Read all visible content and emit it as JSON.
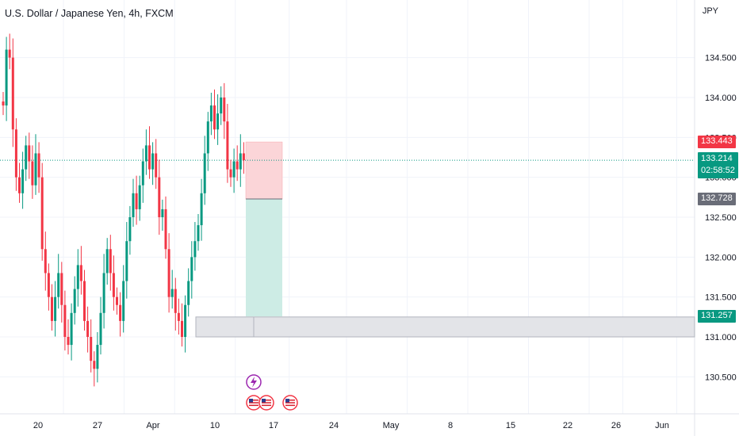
{
  "header": {
    "title": "U.S. Dollar / Japanese Yen, 4h, FXCM",
    "currency": "JPY"
  },
  "price_tags": {
    "stop": "133.443",
    "current_price": "133.214",
    "countdown": "02:58:52",
    "entry": "132.728",
    "target": "131.257"
  },
  "colors": {
    "up": "#089981",
    "down": "#f23645",
    "stop_zone": "#fbd5d8",
    "target_zone": "#cdece5",
    "box": "#e3e4e8",
    "box_border": "#b2b5be",
    "grid": "#f0f3fa",
    "text": "#131722",
    "event_purple": "#9c27b0",
    "event_red": "#f23645"
  },
  "chart_data": {
    "type": "candlestick",
    "title": "U.S. Dollar / Japanese Yen, 4h, FXCM",
    "y_ticks": [
      130.5,
      131.0,
      131.5,
      132.0,
      132.5,
      133.0,
      133.5,
      134.0,
      134.5
    ],
    "y_tick_labels": [
      "130.500",
      "131.000",
      "131.500",
      "132.000",
      "132.500",
      "133.000",
      "133.500",
      "134.000",
      "134.500"
    ],
    "x_ticks": [
      {
        "label": "20",
        "bar": 8
      },
      {
        "label": "27",
        "bar": 26
      },
      {
        "label": "Apr",
        "bar": 41
      },
      {
        "label": "10",
        "bar": 59
      },
      {
        "label": "17",
        "bar": 75
      },
      {
        "label": "24",
        "bar": 92
      },
      {
        "label": "May",
        "bar": 110
      },
      {
        "label": "8",
        "bar": 128
      },
      {
        "label": "15",
        "bar": 146
      },
      {
        "label": "22",
        "bar": 164
      },
      {
        "label": "26",
        "bar": 174
      },
      {
        "label": "Jun",
        "bar": 190
      }
    ],
    "bar_count_span": 210,
    "ohlc_closes": [
      133.9,
      134.6,
      134.5,
      133.6,
      133.0,
      132.8,
      133.1,
      133.4,
      133.2,
      132.9,
      133.3,
      133.0,
      132.1,
      131.8,
      131.5,
      131.2,
      131.5,
      131.8,
      131.4,
      131.0,
      130.9,
      131.3,
      131.6,
      131.9,
      131.7,
      131.2,
      131.0,
      130.7,
      130.6,
      130.9,
      131.3,
      131.8,
      132.1,
      131.8,
      131.5,
      131.4,
      131.2,
      131.7,
      132.2,
      132.5,
      132.8,
      132.6,
      132.9,
      133.2,
      133.4,
      133.1,
      133.3,
      133.0,
      132.5,
      132.6,
      132.1,
      131.5,
      131.6,
      131.3,
      131.2,
      131.0,
      131.4,
      131.7,
      132.0,
      132.2,
      132.4,
      132.8,
      133.3,
      133.7,
      133.9,
      133.6,
      133.8,
      134.0,
      133.7,
      133.1,
      133.0,
      133.2,
      133.1,
      133.3,
      133.214
    ],
    "position": {
      "stop": 133.443,
      "entry": 132.728,
      "target": 131.257
    },
    "box_zone": {
      "top": 131.25,
      "bottom": 131.0
    },
    "current_price": 133.214,
    "events": [
      "lightning",
      "us-flag",
      "us-flag",
      "us-flag"
    ]
  }
}
